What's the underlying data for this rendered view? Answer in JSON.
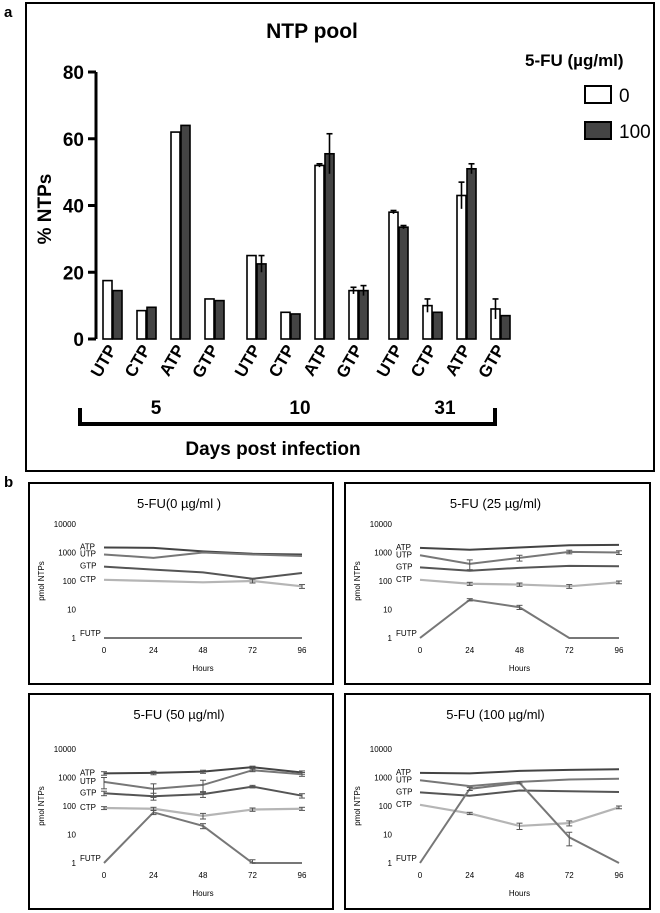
{
  "panel_a_label": "a",
  "panel_b_label": "b",
  "chart_data": [
    {
      "type": "bar",
      "title": "NTP pool",
      "ylabel": "% NTPs",
      "xlabel": "Days post infection",
      "ylim": [
        0,
        80
      ],
      "yticks": [
        "0",
        "20",
        "40",
        "60",
        "80"
      ],
      "legend_title": "5-FU (µg/ml)",
      "groups": [
        "5",
        "10",
        "31"
      ],
      "categories": [
        "UTP",
        "CTP",
        "ATP",
        "GTP"
      ],
      "series": [
        {
          "name": "0",
          "color": "#ffffff",
          "values": [
            [
              17.5,
              8.5,
              62,
              12
            ],
            [
              25,
              8,
              52,
              14.5
            ],
            [
              38,
              10,
              43,
              9
            ]
          ],
          "errors": [
            [
              0,
              0,
              0,
              0
            ],
            [
              0,
              0,
              0.5,
              1
            ],
            [
              0.5,
              2,
              4,
              3
            ]
          ]
        },
        {
          "name": "100",
          "color": "#444444",
          "values": [
            [
              14.5,
              9.5,
              64,
              11.5
            ],
            [
              22.5,
              7.5,
              55.5,
              14.5
            ],
            [
              33.5,
              8,
              51,
              7
            ]
          ],
          "errors": [
            [
              0,
              0,
              0,
              0
            ],
            [
              2.5,
              0,
              6,
              1.5
            ],
            [
              0.5,
              0,
              1.5,
              0
            ]
          ]
        }
      ]
    },
    {
      "type": "line",
      "title": "5-FU(0 µg/ml )",
      "xlabel": "Hours",
      "ylabel": "pmol NTPs",
      "yscale": "log",
      "ylim": [
        1,
        10000
      ],
      "yticks": [
        "1",
        "10",
        "100",
        "1000",
        "10000"
      ],
      "x": [
        0,
        24,
        48,
        72,
        96
      ],
      "xticks": [
        "0",
        "24",
        "48",
        "72",
        "96"
      ],
      "series": [
        {
          "name": "ATP",
          "color": "#444444",
          "values": [
            1500,
            1450,
            1100,
            900,
            850
          ],
          "errors": [
            0,
            0,
            0,
            0,
            0
          ]
        },
        {
          "name": "UTP",
          "color": "#777777",
          "values": [
            850,
            650,
            1000,
            850,
            750
          ],
          "errors": [
            0,
            0,
            0,
            0,
            0
          ]
        },
        {
          "name": "GTP",
          "color": "#555555",
          "values": [
            320,
            250,
            200,
            120,
            190
          ],
          "errors": [
            0,
            0,
            0,
            0,
            0
          ]
        },
        {
          "name": "CTP",
          "color": "#b5b5b5",
          "values": [
            110,
            100,
            90,
            100,
            65
          ],
          "errors": [
            0,
            0,
            0,
            15,
            10
          ]
        },
        {
          "name": "FUTP",
          "color": "#777777",
          "values": [
            1,
            1,
            1,
            1,
            1
          ],
          "errors": [
            0,
            0,
            0,
            0,
            0
          ]
        }
      ]
    },
    {
      "type": "line",
      "title": "5-FU (25 µg/ml)",
      "xlabel": "Hours",
      "ylabel": "pmol NTPs",
      "yscale": "log",
      "ylim": [
        1,
        10000
      ],
      "yticks": [
        "1",
        "10",
        "100",
        "1000",
        "10000"
      ],
      "x": [
        0,
        24,
        48,
        72,
        96
      ],
      "xticks": [
        "0",
        "24",
        "48",
        "72",
        "96"
      ],
      "series": [
        {
          "name": "ATP",
          "color": "#444444",
          "values": [
            1450,
            1250,
            1500,
            1800,
            1850
          ],
          "errors": [
            0,
            0,
            0,
            0,
            0
          ]
        },
        {
          "name": "UTP",
          "color": "#777777",
          "values": [
            800,
            400,
            650,
            1050,
            1000
          ],
          "errors": [
            0,
            150,
            150,
            150,
            150
          ]
        },
        {
          "name": "GTP",
          "color": "#555555",
          "values": [
            300,
            230,
            290,
            340,
            330
          ],
          "errors": [
            0,
            0,
            0,
            0,
            0
          ]
        },
        {
          "name": "CTP",
          "color": "#b5b5b5",
          "values": [
            110,
            80,
            75,
            65,
            90
          ],
          "errors": [
            0,
            10,
            10,
            10,
            10
          ]
        },
        {
          "name": "FUTP",
          "color": "#777777",
          "values": [
            1,
            22,
            12,
            1,
            1
          ],
          "errors": [
            0,
            2,
            2,
            0,
            0
          ]
        }
      ]
    },
    {
      "type": "line",
      "title": "5-FU (50 µg/ml)",
      "xlabel": "Hours",
      "ylabel": "pmol NTPs",
      "yscale": "log",
      "ylim": [
        1,
        10000
      ],
      "yticks": [
        "1",
        "10",
        "100",
        "1000",
        "10000"
      ],
      "x": [
        0,
        24,
        48,
        72,
        96
      ],
      "xticks": [
        "0",
        "24",
        "48",
        "72",
        "96"
      ],
      "series": [
        {
          "name": "ATP",
          "color": "#444444",
          "values": [
            1400,
            1450,
            1600,
            2300,
            1500
          ],
          "errors": [
            200,
            200,
            200,
            200,
            200
          ]
        },
        {
          "name": "UTP",
          "color": "#777777",
          "values": [
            700,
            400,
            550,
            1800,
            1300
          ],
          "errors": [
            300,
            200,
            250,
            200,
            200
          ]
        },
        {
          "name": "GTP",
          "color": "#555555",
          "values": [
            280,
            220,
            260,
            480,
            230
          ],
          "errors": [
            50,
            60,
            60,
            50,
            40
          ]
        },
        {
          "name": "CTP",
          "color": "#b5b5b5",
          "values": [
            85,
            80,
            45,
            75,
            80
          ],
          "errors": [
            10,
            10,
            10,
            10,
            10
          ]
        },
        {
          "name": "FUTP",
          "color": "#777777",
          "values": [
            1,
            60,
            20,
            1,
            1
          ],
          "errors": [
            0,
            10,
            4,
            0.3,
            0
          ]
        }
      ]
    },
    {
      "type": "line",
      "title": "5-FU (100 µg/ml)",
      "xlabel": "Hours",
      "ylabel": "pmol NTPs",
      "yscale": "log",
      "ylim": [
        1,
        10000
      ],
      "yticks": [
        "1",
        "10",
        "100",
        "1000",
        "10000"
      ],
      "x": [
        0,
        24,
        48,
        72,
        96
      ],
      "xticks": [
        "0",
        "24",
        "48",
        "72",
        "96"
      ],
      "series": [
        {
          "name": "ATP",
          "color": "#444444",
          "values": [
            1450,
            1400,
            1700,
            1850,
            1950
          ],
          "errors": [
            0,
            0,
            0,
            0,
            0
          ]
        },
        {
          "name": "UTP",
          "color": "#777777",
          "values": [
            800,
            500,
            700,
            850,
            900
          ],
          "errors": [
            0,
            0,
            0,
            0,
            0
          ]
        },
        {
          "name": "GTP",
          "color": "#555555",
          "values": [
            300,
            230,
            350,
            330,
            310
          ],
          "errors": [
            0,
            0,
            0,
            0,
            0
          ]
        },
        {
          "name": "CTP",
          "color": "#b5b5b5",
          "values": [
            110,
            55,
            20,
            25,
            90
          ],
          "errors": [
            0,
            5,
            5,
            5,
            10
          ]
        },
        {
          "name": "FUTP",
          "color": "#777777",
          "values": [
            1,
            400,
            650,
            8,
            1
          ],
          "errors": [
            0,
            50,
            50,
            4,
            0
          ]
        }
      ]
    }
  ]
}
